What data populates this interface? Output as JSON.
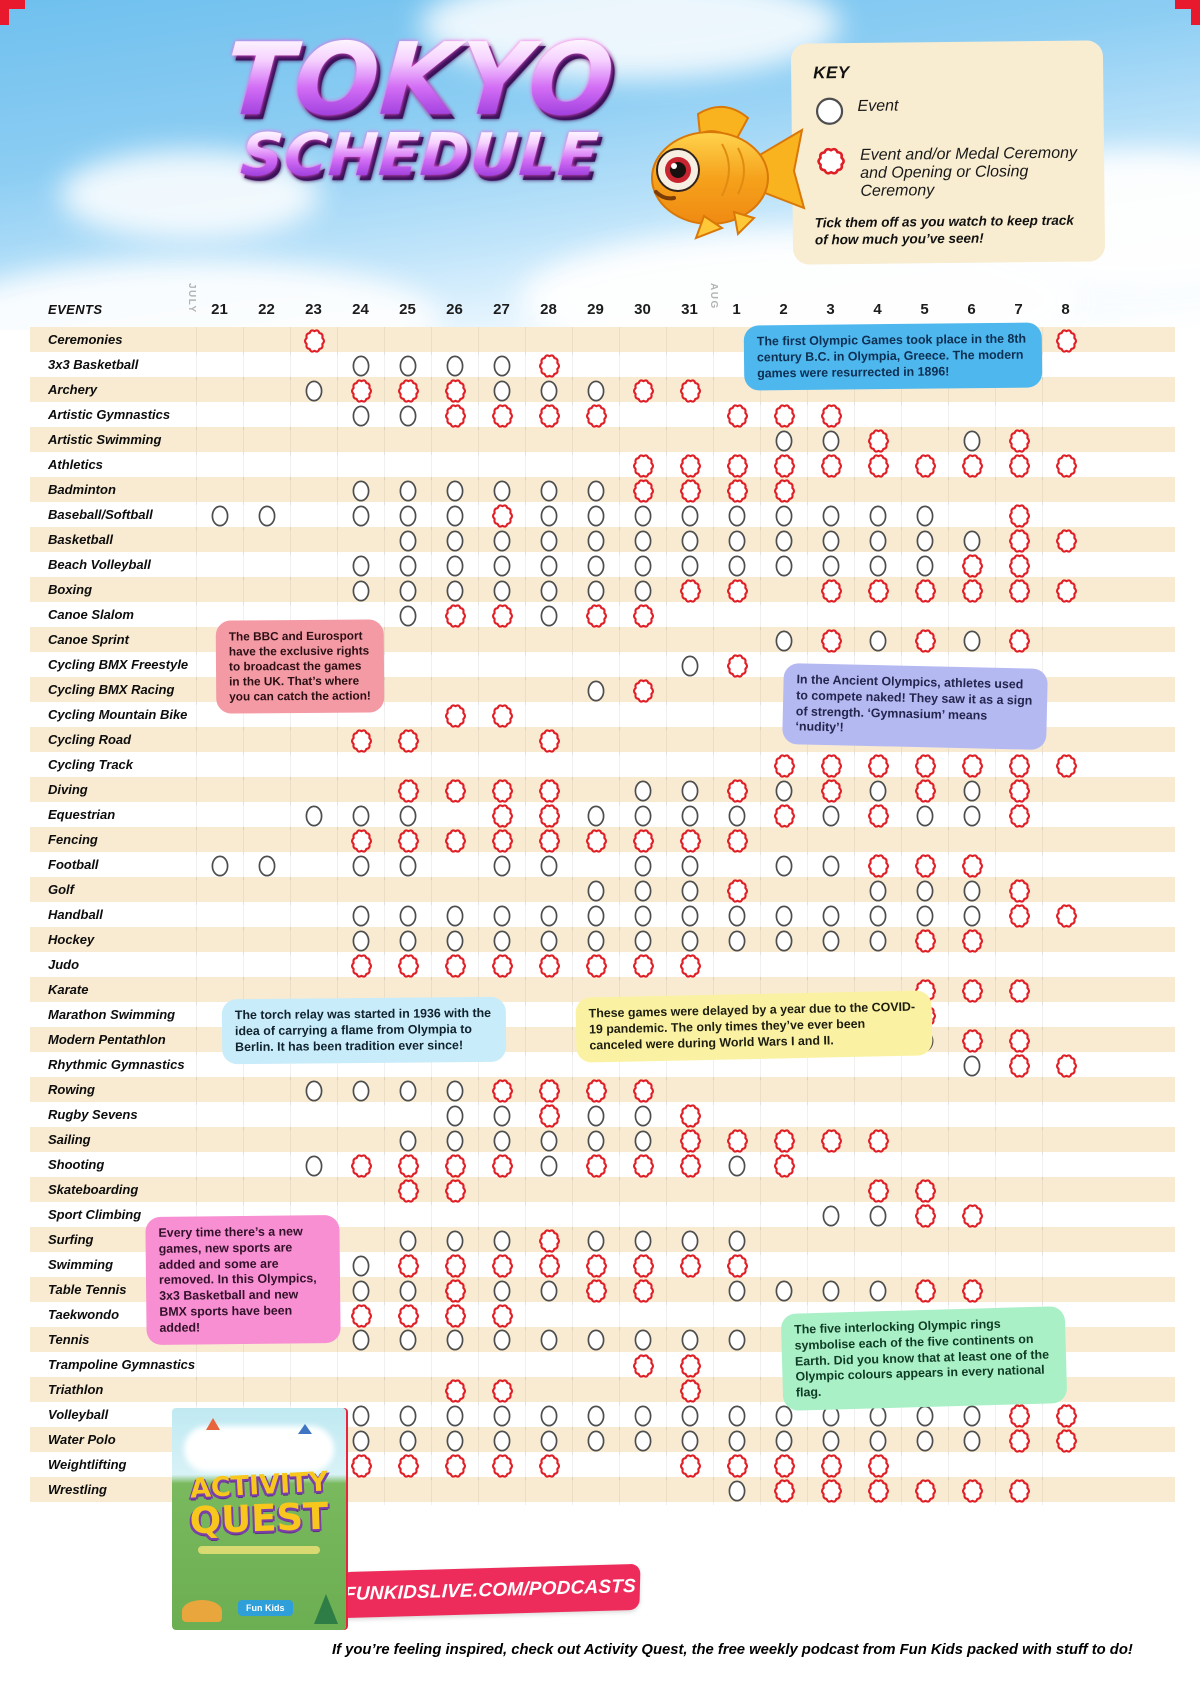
{
  "header": {
    "title1": "TOKYO",
    "title2": "SCHEDULE",
    "key": {
      "title": "KEY",
      "event_label": "Event",
      "medal_label": "Event and/or Medal Ceremony and Opening or Closing Ceremony",
      "note": "Tick them off as you watch to keep track of how much you’ve seen!"
    }
  },
  "grid": {
    "events_header": "EVENTS",
    "month_labels": [
      "JULY",
      "AUG"
    ]
  },
  "chart_data": {
    "type": "table",
    "title": "Tokyo Schedule",
    "columns": [
      "21",
      "22",
      "23",
      "24",
      "25",
      "26",
      "27",
      "28",
      "29",
      "30",
      "31",
      "1",
      "2",
      "3",
      "4",
      "5",
      "6",
      "7",
      "8"
    ],
    "column_months": {
      "JULY": [
        "21",
        "22",
        "23",
        "24",
        "25",
        "26",
        "27",
        "28",
        "29",
        "30",
        "31"
      ],
      "AUG": [
        "1",
        "2",
        "3",
        "4",
        "5",
        "6",
        "7",
        "8"
      ]
    },
    "cell_codes": {
      ".": "none",
      "e": "event",
      "m": "event and/or medal ceremony and opening or closing ceremony"
    },
    "rows": [
      {
        "label": "Ceremonies",
        "cells": "..m...............m"
      },
      {
        "label": "3x3 Basketball",
        "cells": "...eeeem..........."
      },
      {
        "label": "Archery",
        "cells": "..emmmeeemm........"
      },
      {
        "label": "Artistic Gymnastics",
        "cells": "...eemmmm..mmm....."
      },
      {
        "label": "Artistic Swimming",
        "cells": "............eem.em."
      },
      {
        "label": "Athletics",
        "cells": ".........mmmmmmmmmm"
      },
      {
        "label": "Badminton",
        "cells": "...eeeeeemmmm......"
      },
      {
        "label": "Baseball/Softball",
        "cells": "ee.eeemeeeeeeeee.m."
      },
      {
        "label": "Basketball",
        "cells": "....eeeeeeeeeeeeemm"
      },
      {
        "label": "Beach Volleyball",
        "cells": "...eeeeeeeeeeeeemm."
      },
      {
        "label": "Boxing",
        "cells": "...eeeeeeemm.mmmmmm"
      },
      {
        "label": "Canoe Slalom",
        "cells": "....emmemm........."
      },
      {
        "label": "Canoe Sprint",
        "cells": "............ememem."
      },
      {
        "label": "Cycling BMX Freestyle",
        "cells": "..........em......."
      },
      {
        "label": "Cycling BMX Racing",
        "cells": "........em........."
      },
      {
        "label": "Cycling Mountain Bike",
        "cells": ".....mm............"
      },
      {
        "label": "Cycling Road",
        "cells": "...mm..m..........."
      },
      {
        "label": "Cycling Track",
        "cells": "............mmmmmmm"
      },
      {
        "label": "Diving",
        "cells": "....mmmm.eemememem."
      },
      {
        "label": "Equestrian",
        "cells": "..eee.mmeeeememeem."
      },
      {
        "label": "Fencing",
        "cells": "...mmmmmmmmm......."
      },
      {
        "label": "Football",
        "cells": "ee.ee.ee.ee.eemmm.."
      },
      {
        "label": "Golf",
        "cells": "........eeem..eeem."
      },
      {
        "label": "Handball",
        "cells": "...eeeeeeeeeeeeeemm"
      },
      {
        "label": "Hockey",
        "cells": "...eeeeeeeeeeeemm.."
      },
      {
        "label": "Judo",
        "cells": "...mmmmmmmm........"
      },
      {
        "label": "Karate",
        "cells": "...............mmm."
      },
      {
        "label": "Marathon Swimming",
        "cells": "..............mm..."
      },
      {
        "label": "Modern Pentathlon",
        "cells": "...............emm."
      },
      {
        "label": "Rhythmic Gymnastics",
        "cells": "................emm"
      },
      {
        "label": "Rowing",
        "cells": "..eeeemmmm........."
      },
      {
        "label": "Rugby Sevens",
        "cells": ".....eemeem........"
      },
      {
        "label": "Sailing",
        "cells": "....eeeeeemmmmm...."
      },
      {
        "label": "Shooting",
        "cells": "..emmmmemmmem......"
      },
      {
        "label": "Skateboarding",
        "cells": "....mm........mm..."
      },
      {
        "label": "Sport Climbing",
        "cells": ".............eemm.."
      },
      {
        "label": "Surfing",
        "cells": "....eeemeeee......."
      },
      {
        "label": "Swimming",
        "cells": "...emmmmmmmm......."
      },
      {
        "label": "Table Tennis",
        "cells": "...eemeemm.eeeemm.."
      },
      {
        "label": "Taekwondo",
        "cells": "...mmmm............"
      },
      {
        "label": "Tennis",
        "cells": "...eeeeeeeee......."
      },
      {
        "label": "Trampoline Gymnastics",
        "cells": ".........mm........"
      },
      {
        "label": "Triathlon",
        "cells": ".....mm...m........"
      },
      {
        "label": "Volleyball",
        "cells": "...eeeeeeeeeeeeeemm"
      },
      {
        "label": "Water Polo",
        "cells": "...eeeeeeeeeeeeeemm"
      },
      {
        "label": "Weightlifting",
        "cells": "...mmmmm..mmmmm...."
      },
      {
        "label": "Wrestling",
        "cells": "...........emmmmmm."
      }
    ]
  },
  "fact_boxes": [
    {
      "id": "olympia-origin",
      "text": "The first Olympic Games took place in the 8th century B.C. in Olympia, Greece. The modern games were resurrected in 1896!"
    },
    {
      "id": "bbc-eurosport",
      "text": "The BBC and Eurosport have the exclusive rights to broadcast the games in the UK. That’s where you can catch the action!"
    },
    {
      "id": "ancient-naked",
      "text": "In the Ancient Olympics, athletes used to compete naked! They saw it as a sign of strength. ‘Gymnasium’ means ‘nudity’!"
    },
    {
      "id": "torch-relay",
      "text": "The torch relay was started in 1936 with the idea of carrying a flame from Olympia to Berlin. It has been tradition ever since!"
    },
    {
      "id": "covid-delay",
      "text": "These games were delayed by a year due to the COVID-19 pandemic. The only times they’ve ever been canceled were during World Wars I and II."
    },
    {
      "id": "new-sports",
      "text": "Every time there’s a new games, new sports are added and some are removed. In this Olympics, 3x3 Basketball and new BMX sports have been added!"
    },
    {
      "id": "olympic-rings",
      "text": "The five interlocking Olympic rings symbolise each of the five continents on Earth. Did you know that at least one of the Olympic colours appears in every national flag."
    }
  ],
  "logo": {
    "line1": "ACTIVITY",
    "line2": "QUEST",
    "badge": "Fun Kids"
  },
  "footer": {
    "banner": "FUNKIDSLIVE.COM/PODCASTS",
    "note": "If you’re feeling inspired, check out Activity Quest, the free weekly podcast from Fun Kids packed with stuff to do!"
  },
  "colors": {
    "event_circle": "#4e4e4e",
    "medal_circle": "#e01e25",
    "row_stripe": "#f9ebd2",
    "key_bg": "#f8ecd1",
    "banner_bg": "#ee2c5b",
    "fact_blue": "#4db7ee",
    "fact_salmon": "#f49aa4",
    "fact_lavender": "#b5b9f2",
    "fact_cyan": "#c9ecfa",
    "fact_yellow": "#faf2a2",
    "fact_pink": "#f78fd2",
    "fact_mint": "#a9f0c6"
  }
}
